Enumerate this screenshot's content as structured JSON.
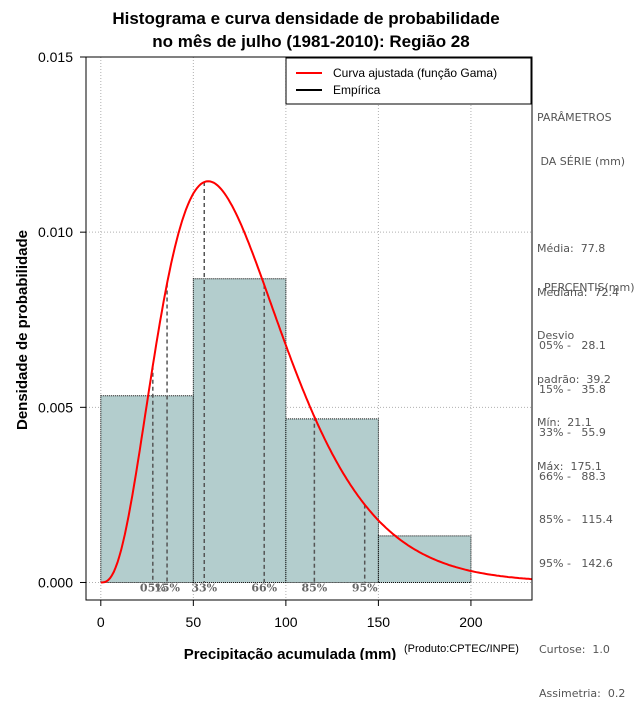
{
  "chart_data": {
    "type": "bar",
    "title_line1": "Histograma e curva densidade de probabilidade",
    "title_line2": "no mês de julho (1981-2010): Região 28",
    "xlabel": "Precipitação acumulada (mm)",
    "xlabel_note": "(Produto:CPTEC/INPE)",
    "ylabel": "Densidade de probabilidade",
    "xlim": [
      -8,
      233
    ],
    "ylim": [
      -0.0005,
      0.015
    ],
    "x_ticks": [
      0,
      50,
      100,
      150,
      200
    ],
    "x_tick_labels": [
      "0",
      "50",
      "100",
      "150",
      "200"
    ],
    "y_ticks": [
      0,
      0.005,
      0.01,
      0.015
    ],
    "y_tick_labels": [
      "0.000",
      "0.005",
      "0.010",
      "0.015"
    ],
    "grid": true,
    "bins": [
      {
        "from": 0,
        "to": 50,
        "density": 0.00533
      },
      {
        "from": 50,
        "to": 100,
        "density": 0.00867
      },
      {
        "from": 100,
        "to": 150,
        "density": 0.00467
      },
      {
        "from": 150,
        "to": 200,
        "density": 0.00133
      }
    ],
    "bar_color": "#b3cdcd",
    "gamma_fit": {
      "mean": 77.8,
      "sd": 39.2,
      "color": "#ff0000",
      "x_max": 233
    },
    "percentiles": [
      {
        "label": "05%",
        "value": 28.1
      },
      {
        "label": "15%",
        "value": 35.8
      },
      {
        "label": "33%",
        "value": 55.9
      },
      {
        "label": "66%",
        "value": 88.3
      },
      {
        "label": "85%",
        "value": 115.4
      },
      {
        "label": "95%",
        "value": 142.6
      }
    ],
    "legend": {
      "position": "top-right",
      "entries": [
        {
          "label": "Curva ajustada (função Gama)",
          "color": "#ff0000"
        },
        {
          "label": "Empírica",
          "color": "#000000"
        }
      ]
    }
  },
  "sidebar": {
    "params_title_1": "PARÂMETROS",
    "params_title_2": " DA SÉRIE (mm)",
    "media": "Média:  77.8",
    "mediana": "Mediana:  72.4",
    "desvio_1": "Desvio",
    "desvio_2": "padrão:  39.2",
    "min": "Mín:  21.1",
    "max": "Máx:  175.1",
    "percentis_title": "PERCENTIS(mm)",
    "p05": "05% -   28.1",
    "p15": "15% -   35.8",
    "p33": "33% -   55.9",
    "p66": "66% -   88.3",
    "p85": "85% -   115.4",
    "p95": "95% -   142.6",
    "curtose": "Curtose:  1.0",
    "assimetria": "Assimetria:  0.2"
  }
}
